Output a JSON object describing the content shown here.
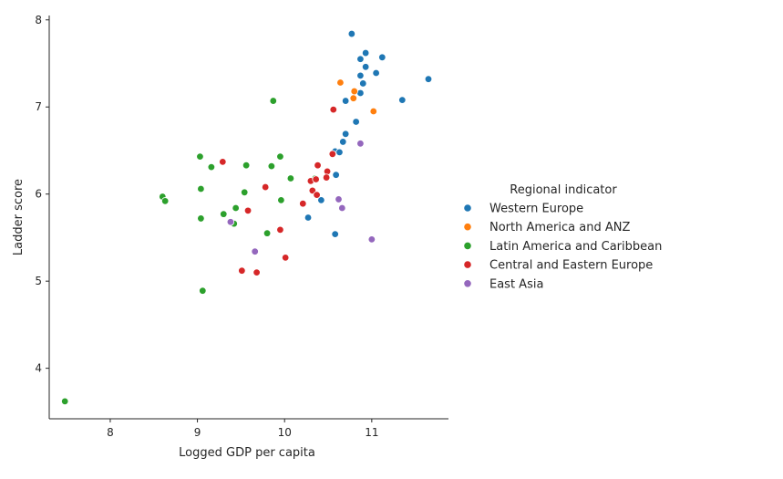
{
  "chart_data": {
    "type": "scatter",
    "xlabel": "Logged GDP per capita",
    "ylabel": "Ladder score",
    "xlim": [
      7.3,
      11.88
    ],
    "ylim": [
      3.42,
      8.05
    ],
    "xticks": [
      "8",
      "9",
      "10",
      "11"
    ],
    "yticks": [
      "4",
      "5",
      "6",
      "7",
      "8"
    ],
    "grid": false,
    "legend": {
      "title": "Regional indicator",
      "placement": "right"
    },
    "series": [
      {
        "name": "Western Europe",
        "color": "#1f77b4",
        "points": [
          [
            10.77,
            7.84
          ],
          [
            10.93,
            7.62
          ],
          [
            11.12,
            7.57
          ],
          [
            10.87,
            7.55
          ],
          [
            10.93,
            7.46
          ],
          [
            11.05,
            7.39
          ],
          [
            10.87,
            7.36
          ],
          [
            11.65,
            7.32
          ],
          [
            10.9,
            7.27
          ],
          [
            10.87,
            7.16
          ],
          [
            11.35,
            7.08
          ],
          [
            10.7,
            7.07
          ],
          [
            10.82,
            6.83
          ],
          [
            10.7,
            6.69
          ],
          [
            10.67,
            6.6
          ],
          [
            10.58,
            6.49
          ],
          [
            10.63,
            6.48
          ],
          [
            10.59,
            6.22
          ],
          [
            10.42,
            5.93
          ],
          [
            10.27,
            5.73
          ],
          [
            10.58,
            5.54
          ]
        ]
      },
      {
        "name": "North America and ANZ",
        "color": "#ff7f0e",
        "points": [
          [
            10.64,
            7.28
          ],
          [
            10.8,
            7.18
          ],
          [
            10.79,
            7.1
          ],
          [
            11.02,
            6.95
          ]
        ]
      },
      {
        "name": "Latin America and Caribbean",
        "color": "#2ca02c",
        "points": [
          [
            9.87,
            7.07
          ],
          [
            9.03,
            6.43
          ],
          [
            9.95,
            6.43
          ],
          [
            9.16,
            6.31
          ],
          [
            9.56,
            6.33
          ],
          [
            9.85,
            6.32
          ],
          [
            10.07,
            6.18
          ],
          [
            10.35,
            6.18
          ],
          [
            9.04,
            6.06
          ],
          [
            9.54,
            6.02
          ],
          [
            8.6,
            5.97
          ],
          [
            8.63,
            5.92
          ],
          [
            9.96,
            5.93
          ],
          [
            9.44,
            5.84
          ],
          [
            9.3,
            5.77
          ],
          [
            9.04,
            5.72
          ],
          [
            9.42,
            5.66
          ],
          [
            9.8,
            5.55
          ],
          [
            9.06,
            4.89
          ],
          [
            7.48,
            3.62
          ]
        ]
      },
      {
        "name": "Central and Eastern Europe",
        "color": "#d62728",
        "points": [
          [
            10.56,
            6.97
          ],
          [
            10.55,
            6.46
          ],
          [
            9.29,
            6.37
          ],
          [
            10.38,
            6.33
          ],
          [
            10.49,
            6.26
          ],
          [
            10.3,
            6.15
          ],
          [
            10.36,
            6.17
          ],
          [
            10.48,
            6.19
          ],
          [
            9.78,
            6.08
          ],
          [
            10.32,
            6.04
          ],
          [
            10.37,
            5.99
          ],
          [
            10.21,
            5.89
          ],
          [
            9.58,
            5.81
          ],
          [
            9.95,
            5.59
          ],
          [
            10.01,
            5.27
          ],
          [
            9.51,
            5.12
          ],
          [
            9.68,
            5.1
          ]
        ]
      },
      {
        "name": "East Asia",
        "color": "#9467bd",
        "points": [
          [
            10.87,
            6.58
          ],
          [
            10.62,
            5.94
          ],
          [
            10.66,
            5.84
          ],
          [
            9.38,
            5.68
          ],
          [
            9.66,
            5.34
          ],
          [
            11.0,
            5.48
          ]
        ]
      }
    ]
  }
}
